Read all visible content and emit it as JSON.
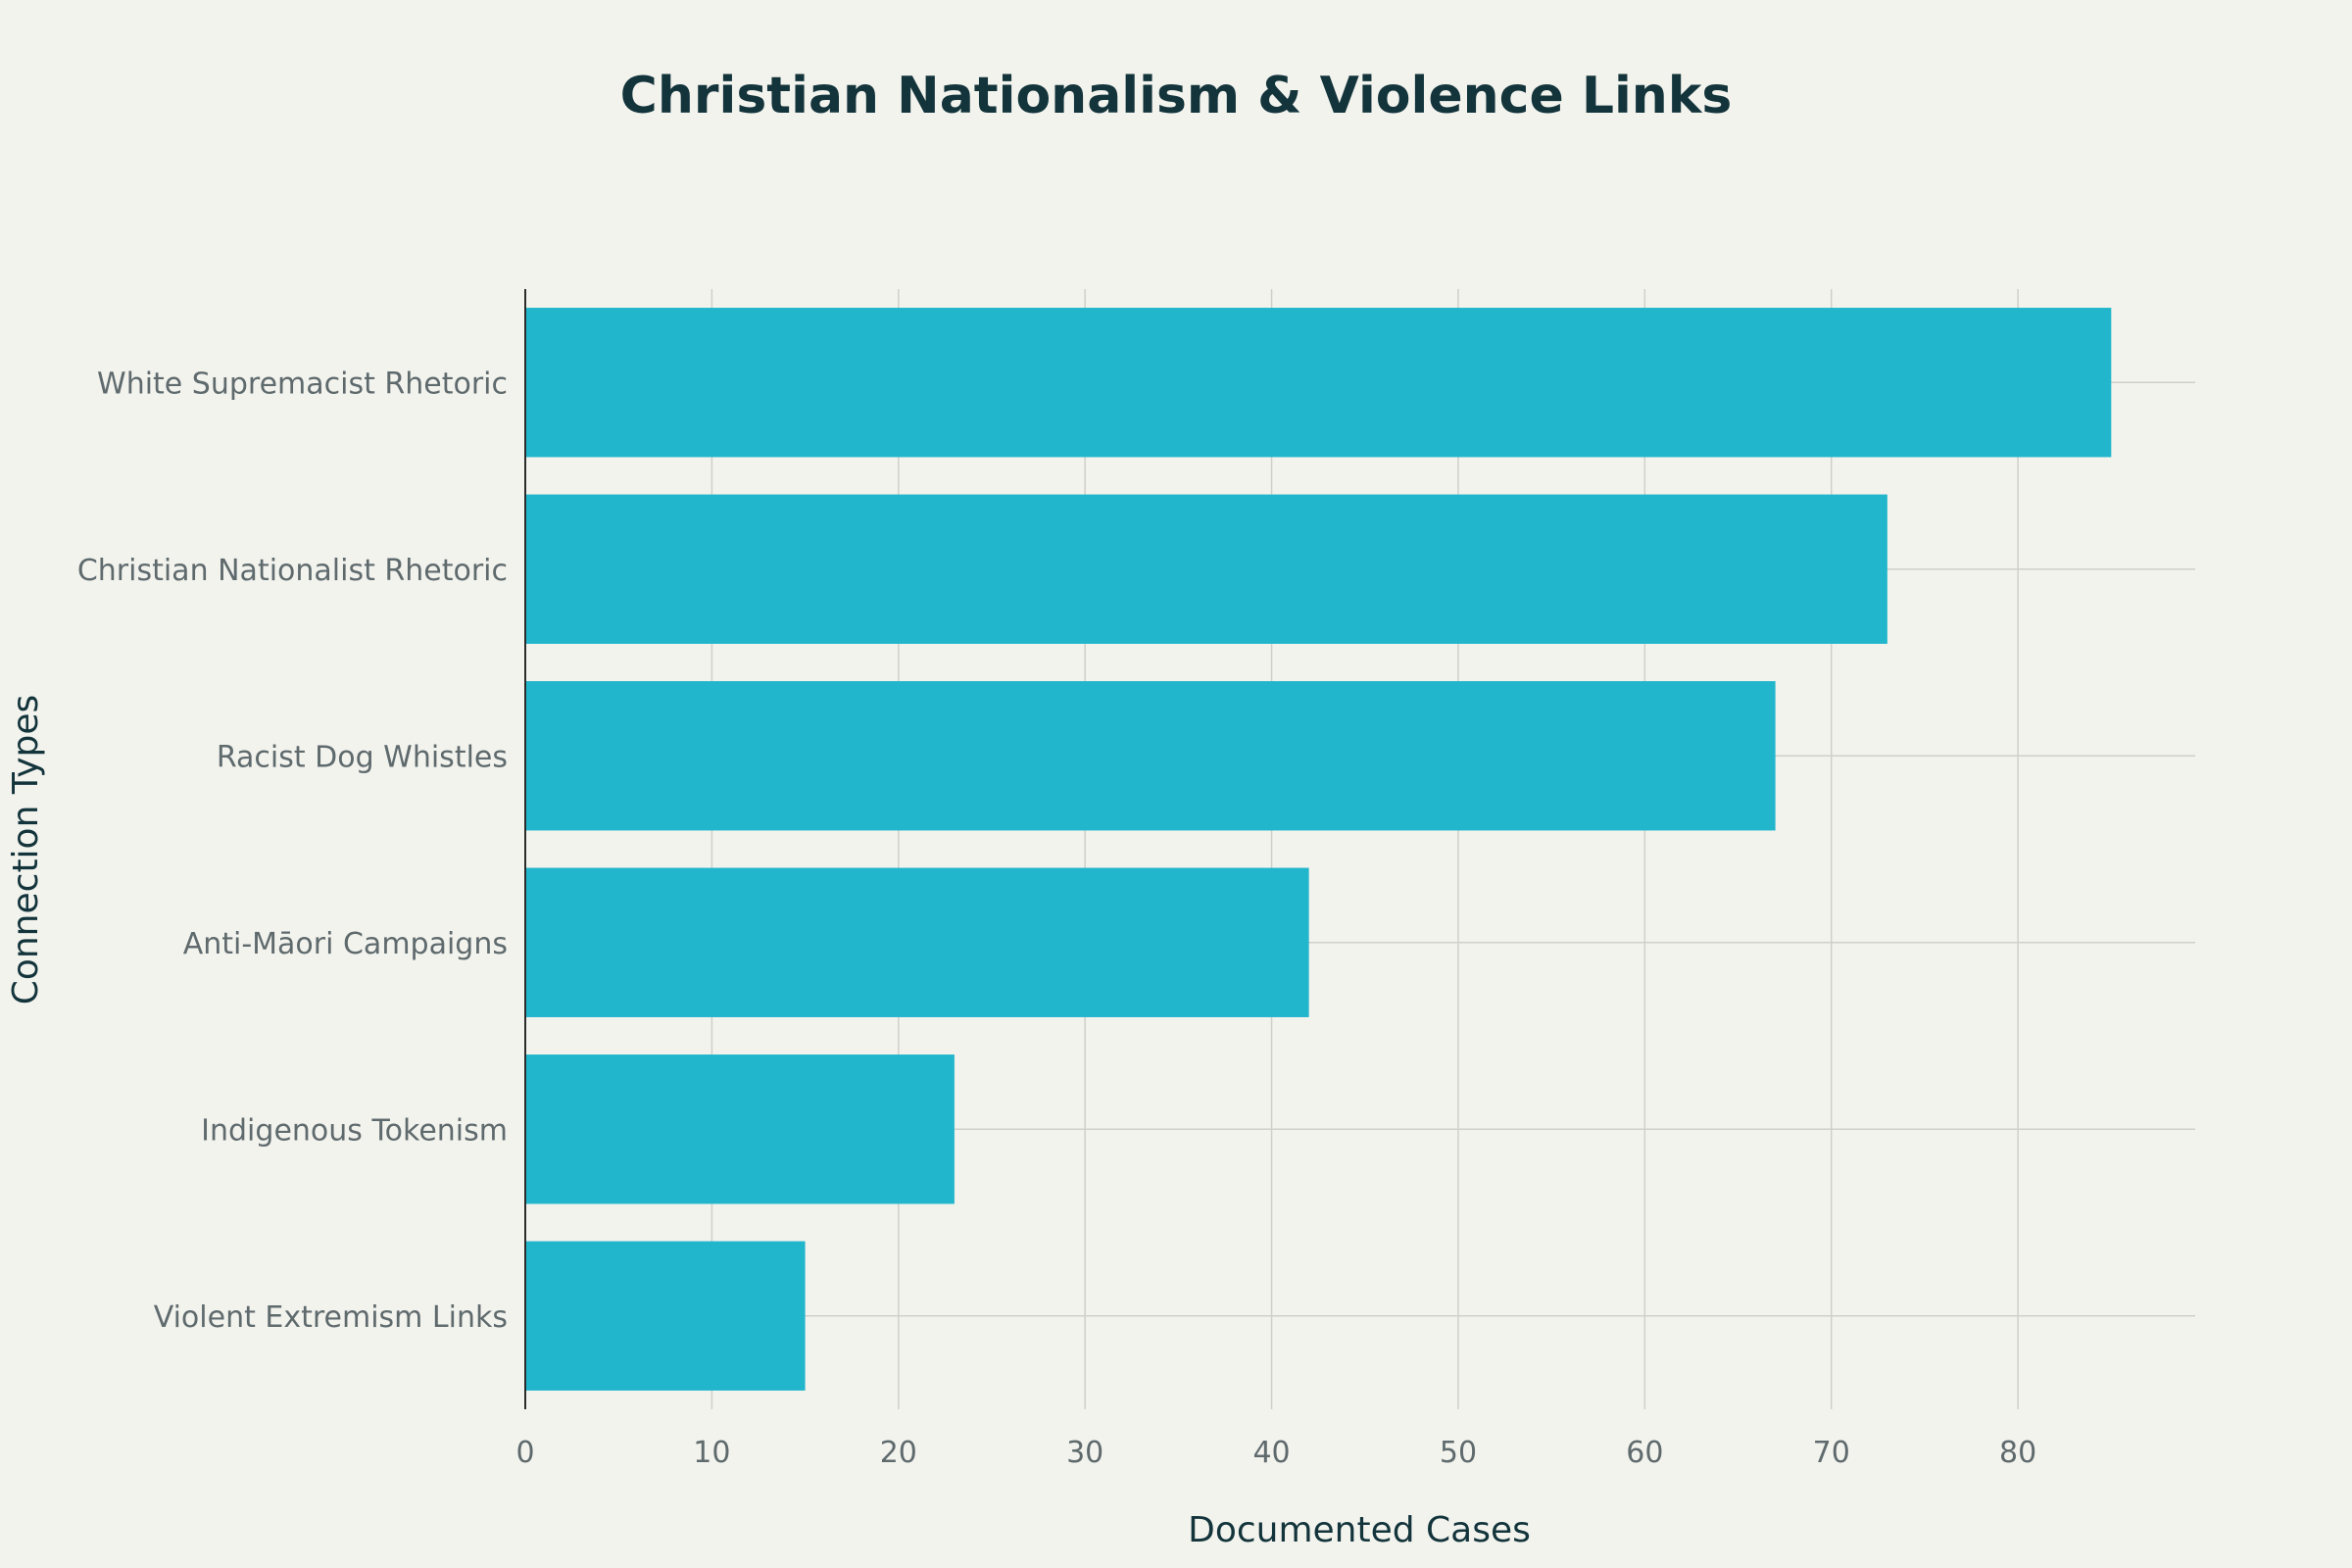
{
  "chart_data": {
    "type": "bar",
    "orientation": "horizontal",
    "title": "Christian Nationalism & Violence Links",
    "xlabel": "Documented Cases",
    "ylabel": "Connection Types",
    "categories": [
      "White Supremacist Rhetoric",
      "Christian Nationalist Rhetoric",
      "Racist Dog Whistles",
      "Anti-Māori Campaigns",
      "Indigenous Tokenism",
      "Violent Extremism Links"
    ],
    "values": [
      85,
      73,
      67,
      42,
      23,
      15
    ],
    "xlim": [
      0,
      89.5
    ],
    "xticks": [
      0,
      10,
      20,
      30,
      40,
      50,
      60,
      70,
      80
    ],
    "grid": true,
    "legend": "none",
    "colors": {
      "bar": "#21b6cc",
      "background": "#f3f3ee",
      "title": "#13343b",
      "tick_text": "#5f6a6d",
      "grid": "#cfd0ca"
    }
  }
}
